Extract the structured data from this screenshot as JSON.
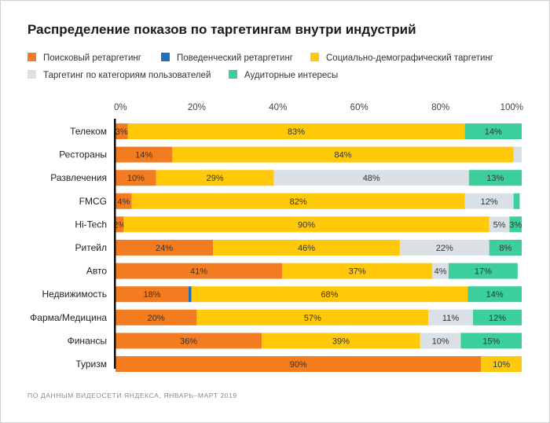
{
  "title": "Распределение показов по таргетингам внутри индустрий",
  "source": "ПО ДАННЫМ ВИДЕОСЕТИ ЯНДЕКСА, ЯНВАРЬ–МАРТ 2019",
  "chart_data": {
    "type": "bar",
    "orientation": "horizontal",
    "stacked": true,
    "title": "Распределение показов по таргетингам внутри индустрий",
    "xlim": [
      0,
      100
    ],
    "x_ticks": [
      "0%",
      "20%",
      "40%",
      "60%",
      "80%",
      "100%"
    ],
    "legend_position": "top",
    "categories": [
      "Телеком",
      "Рестораны",
      "Развлечения",
      "FMCG",
      "Hi-Tech",
      "Ритейл",
      "Авто",
      "Недвижимость",
      "Фарма/Медицина",
      "Финансы",
      "Туризм"
    ],
    "series": [
      {
        "name": "Поисковый ретаргетинг",
        "color": "#f47c20",
        "values": [
          3,
          14,
          10,
          4,
          2,
          24,
          41,
          18,
          20,
          36,
          90
        ]
      },
      {
        "name": "Поведенческий ретаргетинг",
        "color": "#1f6fbf",
        "values": [
          0,
          0,
          0,
          0,
          0,
          0,
          0,
          0.7,
          0,
          0,
          0
        ]
      },
      {
        "name": "Социально-демографический таргетинг",
        "color": "#ffc90a",
        "values": [
          83,
          84,
          29,
          82,
          90,
          46,
          37,
          68,
          57,
          39,
          10
        ]
      },
      {
        "name": "Таргетинг по категориям пользователей",
        "color": "#d9e1e6",
        "values": [
          0,
          2,
          48,
          12,
          5,
          22,
          4,
          0,
          11,
          10,
          0
        ]
      },
      {
        "name": "Аудиторные интересы",
        "color": "#3ccf9c",
        "values": [
          14,
          0,
          13,
          1.5,
          3,
          8,
          17,
          14,
          12,
          15,
          0
        ]
      }
    ],
    "labels": [
      [
        "3%",
        "",
        "83%",
        "",
        "14%"
      ],
      [
        "14%",
        "",
        "84%",
        "",
        ""
      ],
      [
        "10%",
        "",
        "29%",
        "48%",
        "13%"
      ],
      [
        "4%",
        "",
        "82%",
        "12%",
        ""
      ],
      [
        "2%",
        "",
        "90%",
        "5%",
        "3%"
      ],
      [
        "24%",
        "",
        "46%",
        "22%",
        "8%"
      ],
      [
        "41%",
        "",
        "37%",
        "4%",
        "17%"
      ],
      [
        "18%",
        "",
        "68%",
        "",
        "14%"
      ],
      [
        "20%",
        "",
        "57%",
        "11%",
        "12%"
      ],
      [
        "36%",
        "",
        "39%",
        "10%",
        "15%"
      ],
      [
        "90%",
        "",
        "10%",
        "",
        ""
      ]
    ]
  }
}
